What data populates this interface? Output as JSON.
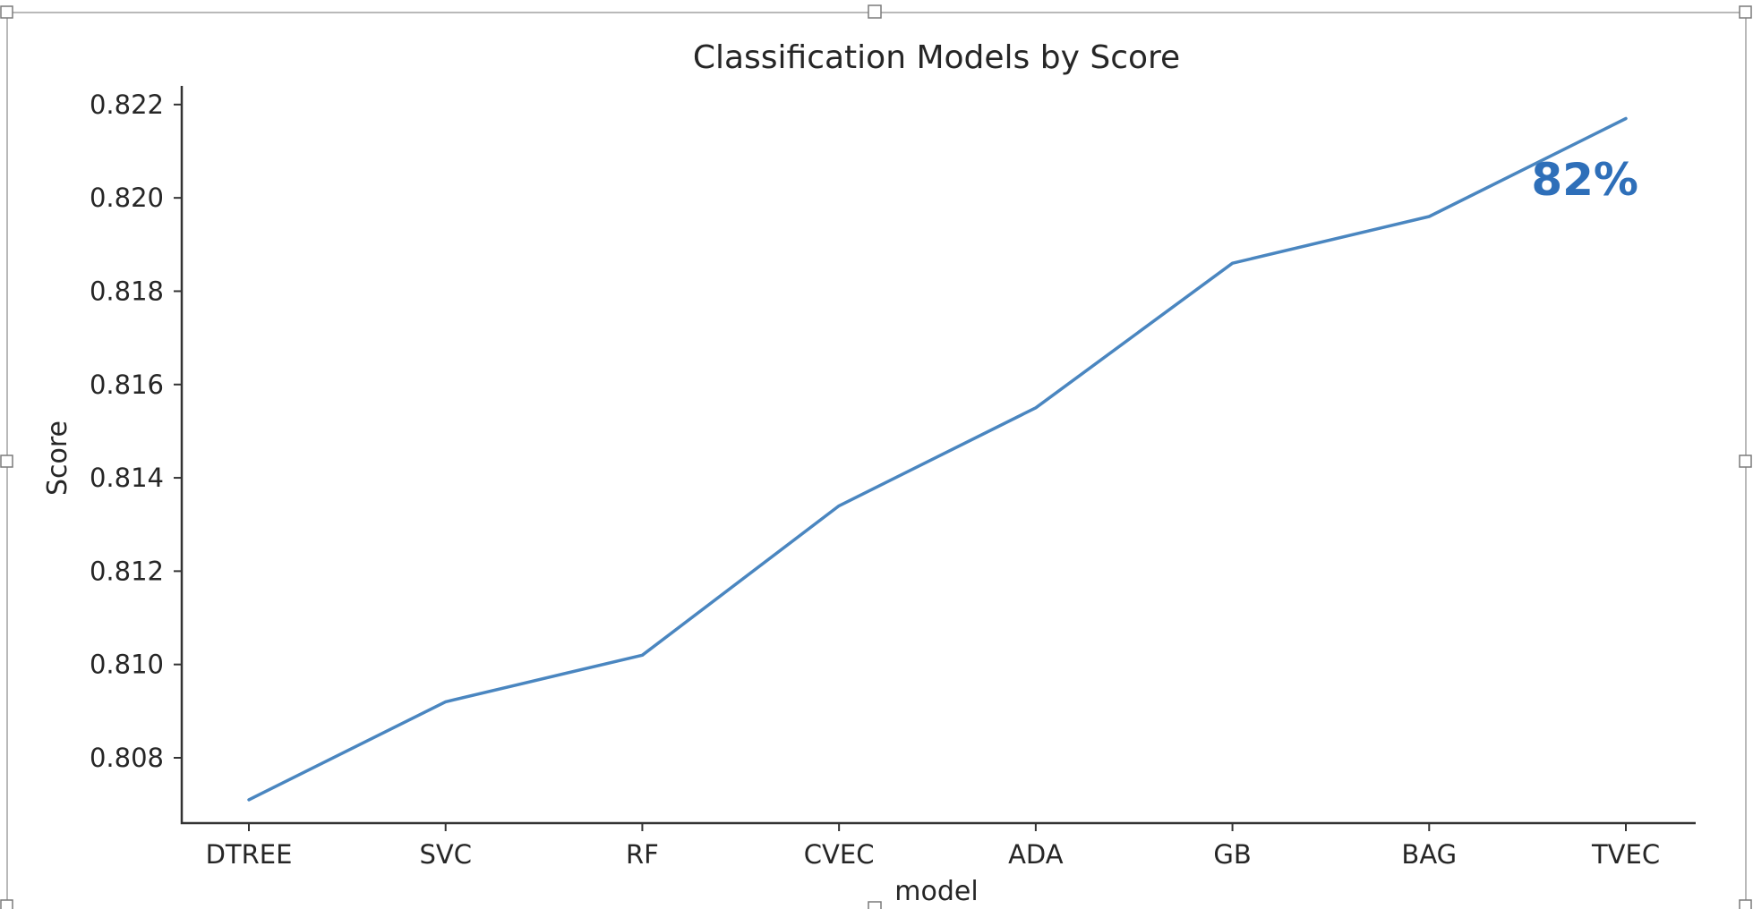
{
  "colors": {
    "line": "#4a86c0",
    "callout": "#2e6fb9"
  },
  "chart_data": {
    "type": "line",
    "title": "Classification Models by Score",
    "xlabel": "model",
    "ylabel": "Score",
    "categories": [
      "DTREE",
      "SVC",
      "RF",
      "CVEC",
      "ADA",
      "GB",
      "BAG",
      "TVEC"
    ],
    "series": [
      {
        "values": [
          0.8071,
          0.8092,
          0.8102,
          0.8134,
          0.8155,
          0.8186,
          0.8196,
          0.8217
        ]
      }
    ],
    "yticks": [
      "0.808",
      "0.810",
      "0.812",
      "0.814",
      "0.816",
      "0.818",
      "0.820",
      "0.822"
    ],
    "ylim": [
      0.8066,
      0.8224
    ],
    "grid": false,
    "legend": "none",
    "annotation": "82%"
  }
}
